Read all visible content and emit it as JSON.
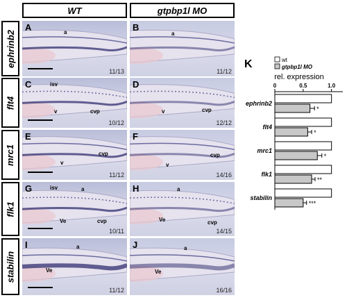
{
  "columns": [
    "WT",
    "gtpbp1l MO"
  ],
  "rows": [
    "ephrinb2",
    "flt4",
    "mrc1",
    "flk1",
    "stabilin"
  ],
  "panels": [
    {
      "label": "A",
      "ratio": "11/13",
      "annos": [
        "a"
      ]
    },
    {
      "label": "B",
      "ratio": "11/12",
      "annos": [
        "a"
      ]
    },
    {
      "label": "C",
      "ratio": "10/12",
      "annos": [
        "isv",
        "v",
        "cvp"
      ]
    },
    {
      "label": "D",
      "ratio": "12/12",
      "annos": [
        "v",
        "cvp"
      ]
    },
    {
      "label": "E",
      "ratio": "11/12",
      "annos": [
        "v",
        "cvp"
      ]
    },
    {
      "label": "F",
      "ratio": "14/16",
      "annos": [
        "v",
        "cvp"
      ]
    },
    {
      "label": "G",
      "ratio": "10/11",
      "annos": [
        "isv",
        "a",
        "Ve",
        "cvp"
      ]
    },
    {
      "label": "H",
      "ratio": "14/15",
      "annos": [
        "a",
        "Ve",
        "cvp"
      ]
    },
    {
      "label": "I",
      "ratio": "11/12",
      "annos": [
        "a",
        "Ve"
      ]
    },
    {
      "label": "J",
      "ratio": "16/16",
      "annos": [
        "a",
        "Ve"
      ]
    }
  ],
  "panel_k": {
    "label": "K",
    "axis_title": "rel. expression",
    "legend": [
      "wt",
      "gtpbp1l MO"
    ]
  },
  "chart_data": {
    "type": "bar",
    "orientation": "horizontal",
    "categories": [
      "ephrinb2",
      "flt4",
      "mrc1",
      "flk1",
      "stabilin"
    ],
    "series": [
      {
        "name": "wt",
        "values": [
          1.0,
          1.0,
          1.0,
          1.0,
          1.0
        ],
        "color": "#ffffff"
      },
      {
        "name": "gtpbp1l MO",
        "values": [
          0.62,
          0.58,
          0.75,
          0.65,
          0.5
        ],
        "errors": [
          0.08,
          0.07,
          0.08,
          0.06,
          0.06
        ],
        "color": "#c8c8c8"
      }
    ],
    "significance": [
      "*",
      "*",
      "*",
      "**",
      "***"
    ],
    "xlabel": "rel. expression",
    "xlim": [
      0,
      1.2
    ],
    "xticks": [
      0,
      0.5,
      1.0
    ],
    "xtick_labels": [
      "0",
      "0.5",
      "1.0"
    ],
    "legend_position": "top"
  }
}
